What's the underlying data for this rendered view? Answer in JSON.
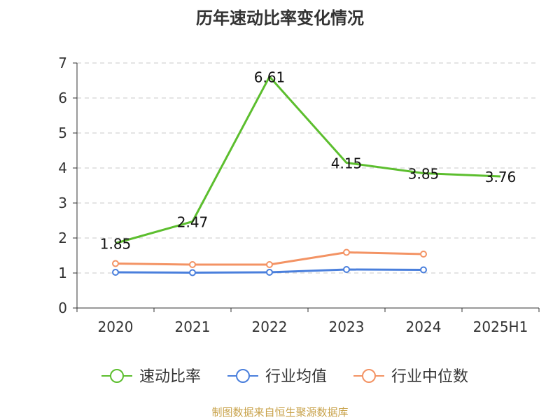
{
  "chart_data": {
    "type": "line",
    "title": "历年速动比率变化情况",
    "categories": [
      "2020",
      "2021",
      "2022",
      "2023",
      "2024",
      "2025H1"
    ],
    "ylim": [
      0,
      7
    ],
    "yticks": [
      0,
      1,
      2,
      3,
      4,
      5,
      6,
      7
    ],
    "grid": true,
    "legend_position": "bottom",
    "series": [
      {
        "name": "速动比率",
        "color": "#5cbe2e",
        "values": [
          1.85,
          2.47,
          6.61,
          4.15,
          3.85,
          3.76
        ],
        "labels": [
          "1.85",
          "2.47",
          "6.61",
          "4.15",
          "3.85",
          "3.76"
        ]
      },
      {
        "name": "行业均值",
        "color": "#4a7fdc",
        "values": [
          1.02,
          1.01,
          1.02,
          1.1,
          1.09,
          null
        ]
      },
      {
        "name": "行业中位数",
        "color": "#f39364",
        "values": [
          1.27,
          1.24,
          1.24,
          1.59,
          1.54,
          null
        ]
      }
    ]
  },
  "footer": {
    "source": "制图数据来自恒生聚源数据库"
  }
}
